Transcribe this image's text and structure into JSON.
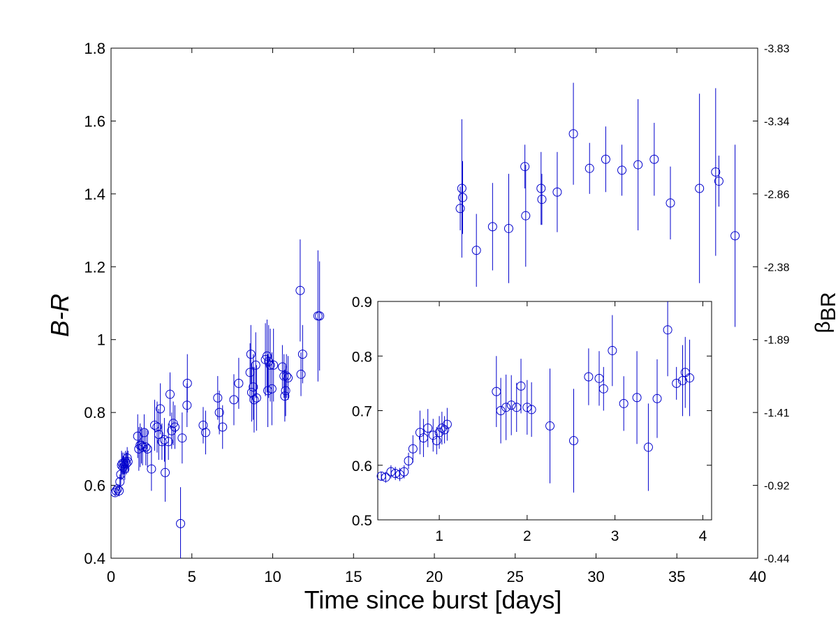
{
  "chart_data": {
    "type": "scatter",
    "color": "#0000cc",
    "main": {
      "xlabel": "Time since burst [days]",
      "ylabel": "B-R",
      "xlim": [
        0,
        40
      ],
      "ylim": [
        0.4,
        1.8
      ],
      "xticks": [
        "0",
        "5",
        "10",
        "15",
        "20",
        "25",
        "30",
        "35",
        "40"
      ],
      "yticks": [
        "0.4",
        "0.6",
        "0.8",
        "1",
        "1.2",
        "1.4",
        "1.6",
        "1.8"
      ],
      "right_ylabel": "β_BR",
      "right_ylabel_main": "β",
      "right_ylabel_sub": "BR",
      "right_ticks": [
        "-0.44",
        "-0.92",
        "-1.41",
        "-1.89",
        "-2.38",
        "-2.86",
        "-3.34",
        "-3.83"
      ],
      "points": [
        [
          0.25,
          0.58,
          0.01
        ],
        [
          0.32,
          0.585,
          0.01
        ],
        [
          0.4,
          0.59,
          0.01
        ],
        [
          0.5,
          0.585,
          0.015
        ],
        [
          0.55,
          0.61,
          0.02
        ],
        [
          0.6,
          0.63,
          0.03
        ],
        [
          0.65,
          0.655,
          0.04
        ],
        [
          0.7,
          0.66,
          0.03
        ],
        [
          0.75,
          0.65,
          0.03
        ],
        [
          0.8,
          0.66,
          0.03
        ],
        [
          0.85,
          0.645,
          0.03
        ],
        [
          0.9,
          0.665,
          0.03
        ],
        [
          0.95,
          0.66,
          0.03
        ],
        [
          1.0,
          0.675,
          0.03
        ],
        [
          1.05,
          0.665,
          0.03
        ],
        [
          1.65,
          0.735,
          0.06
        ],
        [
          1.72,
          0.7,
          0.06
        ],
        [
          1.8,
          0.71,
          0.06
        ],
        [
          1.88,
          0.71,
          0.05
        ],
        [
          1.95,
          0.705,
          0.05
        ],
        [
          2.05,
          0.745,
          0.05
        ],
        [
          2.15,
          0.705,
          0.05
        ],
        [
          2.25,
          0.7,
          0.05
        ],
        [
          2.5,
          0.645,
          0.06
        ],
        [
          2.7,
          0.765,
          0.07
        ],
        [
          2.85,
          0.76,
          0.07
        ],
        [
          2.95,
          0.74,
          0.07
        ],
        [
          3.05,
          0.81,
          0.07
        ],
        [
          3.15,
          0.72,
          0.05
        ],
        [
          3.3,
          0.725,
          0.06
        ],
        [
          3.35,
          0.635,
          0.08
        ],
        [
          3.55,
          0.72,
          0.05
        ],
        [
          3.65,
          0.85,
          0.06
        ],
        [
          3.75,
          0.75,
          0.05
        ],
        [
          3.85,
          0.77,
          0.06
        ],
        [
          3.95,
          0.76,
          0.06
        ],
        [
          4.3,
          0.495,
          0.1
        ],
        [
          4.4,
          0.73,
          0.07
        ],
        [
          4.7,
          0.82,
          0.06
        ],
        [
          4.72,
          0.88,
          0.08
        ],
        [
          5.7,
          0.765,
          0.05
        ],
        [
          5.85,
          0.745,
          0.06
        ],
        [
          6.6,
          0.84,
          0.06
        ],
        [
          6.7,
          0.8,
          0.06
        ],
        [
          6.9,
          0.76,
          0.06
        ],
        [
          7.6,
          0.835,
          0.07
        ],
        [
          7.9,
          0.88,
          0.07
        ],
        [
          8.6,
          0.91,
          0.08
        ],
        [
          8.65,
          0.96,
          0.08
        ],
        [
          8.7,
          0.855,
          0.08
        ],
        [
          8.8,
          0.87,
          0.09
        ],
        [
          8.85,
          0.835,
          0.09
        ],
        [
          8.95,
          0.93,
          0.09
        ],
        [
          9.0,
          0.84,
          0.09
        ],
        [
          9.55,
          0.945,
          0.1
        ],
        [
          9.65,
          0.955,
          0.1
        ],
        [
          9.7,
          0.86,
          0.1
        ],
        [
          9.75,
          0.94,
          0.1
        ],
        [
          9.85,
          0.93,
          0.1
        ],
        [
          9.95,
          0.865,
          0.1
        ],
        [
          10.05,
          0.93,
          0.1
        ],
        [
          10.6,
          0.925,
          0.06
        ],
        [
          10.7,
          0.9,
          0.06
        ],
        [
          10.75,
          0.845,
          0.07
        ],
        [
          10.8,
          0.86,
          0.07
        ],
        [
          10.85,
          0.9,
          0.06
        ],
        [
          10.95,
          0.895,
          0.06
        ],
        [
          11.7,
          1.135,
          0.14
        ],
        [
          11.75,
          0.905,
          0.06
        ],
        [
          11.85,
          0.96,
          0.08
        ],
        [
          12.8,
          1.065,
          0.18
        ],
        [
          12.9,
          1.065,
          0.15
        ],
        [
          21.6,
          1.36,
          0.06
        ],
        [
          21.7,
          1.415,
          0.19
        ],
        [
          21.75,
          1.39,
          0.1
        ],
        [
          22.6,
          1.245,
          0.1
        ],
        [
          23.6,
          1.31,
          0.12
        ],
        [
          24.6,
          1.305,
          0.15
        ],
        [
          25.6,
          1.475,
          0.06
        ],
        [
          25.65,
          1.34,
          0.14
        ],
        [
          26.6,
          1.415,
          0.1
        ],
        [
          26.65,
          1.385,
          0.07
        ],
        [
          27.6,
          1.405,
          0.11
        ],
        [
          28.6,
          1.565,
          0.14
        ],
        [
          29.6,
          1.47,
          0.07
        ],
        [
          30.6,
          1.495,
          0.09
        ],
        [
          31.6,
          1.465,
          0.07
        ],
        [
          32.6,
          1.48,
          0.18
        ],
        [
          33.6,
          1.495,
          0.1
        ],
        [
          34.6,
          1.375,
          0.1
        ],
        [
          36.4,
          1.415,
          0.26
        ],
        [
          37.4,
          1.46,
          0.23
        ],
        [
          37.6,
          1.435,
          0.07
        ],
        [
          38.6,
          1.285,
          0.25
        ]
      ]
    },
    "inset": {
      "xlim": [
        0.3,
        4.1
      ],
      "ylim": [
        0.5,
        0.9
      ],
      "xticks": [
        "1",
        "2",
        "3",
        "4"
      ],
      "yticks": [
        "0.5",
        "0.6",
        "0.7",
        "0.8",
        "0.9"
      ],
      "points": [
        [
          0.34,
          0.58,
          0.008
        ],
        [
          0.39,
          0.578,
          0.01
        ],
        [
          0.45,
          0.588,
          0.012
        ],
        [
          0.5,
          0.585,
          0.012
        ],
        [
          0.55,
          0.583,
          0.012
        ],
        [
          0.6,
          0.588,
          0.012
        ],
        [
          0.65,
          0.608,
          0.015
        ],
        [
          0.7,
          0.63,
          0.025
        ],
        [
          0.78,
          0.66,
          0.04
        ],
        [
          0.82,
          0.65,
          0.035
        ],
        [
          0.87,
          0.668,
          0.035
        ],
        [
          0.93,
          0.655,
          0.03
        ],
        [
          0.97,
          0.645,
          0.025
        ],
        [
          1.0,
          0.66,
          0.03
        ],
        [
          1.03,
          0.668,
          0.03
        ],
        [
          1.06,
          0.665,
          0.025
        ],
        [
          1.09,
          0.675,
          0.03
        ],
        [
          1.65,
          0.735,
          0.065
        ],
        [
          1.7,
          0.7,
          0.06
        ],
        [
          1.76,
          0.706,
          0.06
        ],
        [
          1.82,
          0.71,
          0.055
        ],
        [
          1.88,
          0.706,
          0.045
        ],
        [
          1.93,
          0.745,
          0.05
        ],
        [
          2.0,
          0.706,
          0.05
        ],
        [
          2.05,
          0.702,
          0.05
        ],
        [
          2.26,
          0.672,
          0.105
        ],
        [
          2.53,
          0.645,
          0.095
        ],
        [
          2.7,
          0.762,
          0.052
        ],
        [
          2.82,
          0.759,
          0.05
        ],
        [
          2.87,
          0.74,
          0.04
        ],
        [
          2.97,
          0.81,
          0.065
        ],
        [
          3.1,
          0.713,
          0.05
        ],
        [
          3.25,
          0.724,
          0.085
        ],
        [
          3.38,
          0.633,
          0.08
        ],
        [
          3.48,
          0.722,
          0.072
        ],
        [
          3.6,
          0.848,
          0.085
        ],
        [
          3.7,
          0.75,
          0.03
        ],
        [
          3.77,
          0.755,
          0.065
        ],
        [
          3.8,
          0.77,
          0.065
        ],
        [
          3.85,
          0.76,
          0.07
        ]
      ]
    }
  }
}
